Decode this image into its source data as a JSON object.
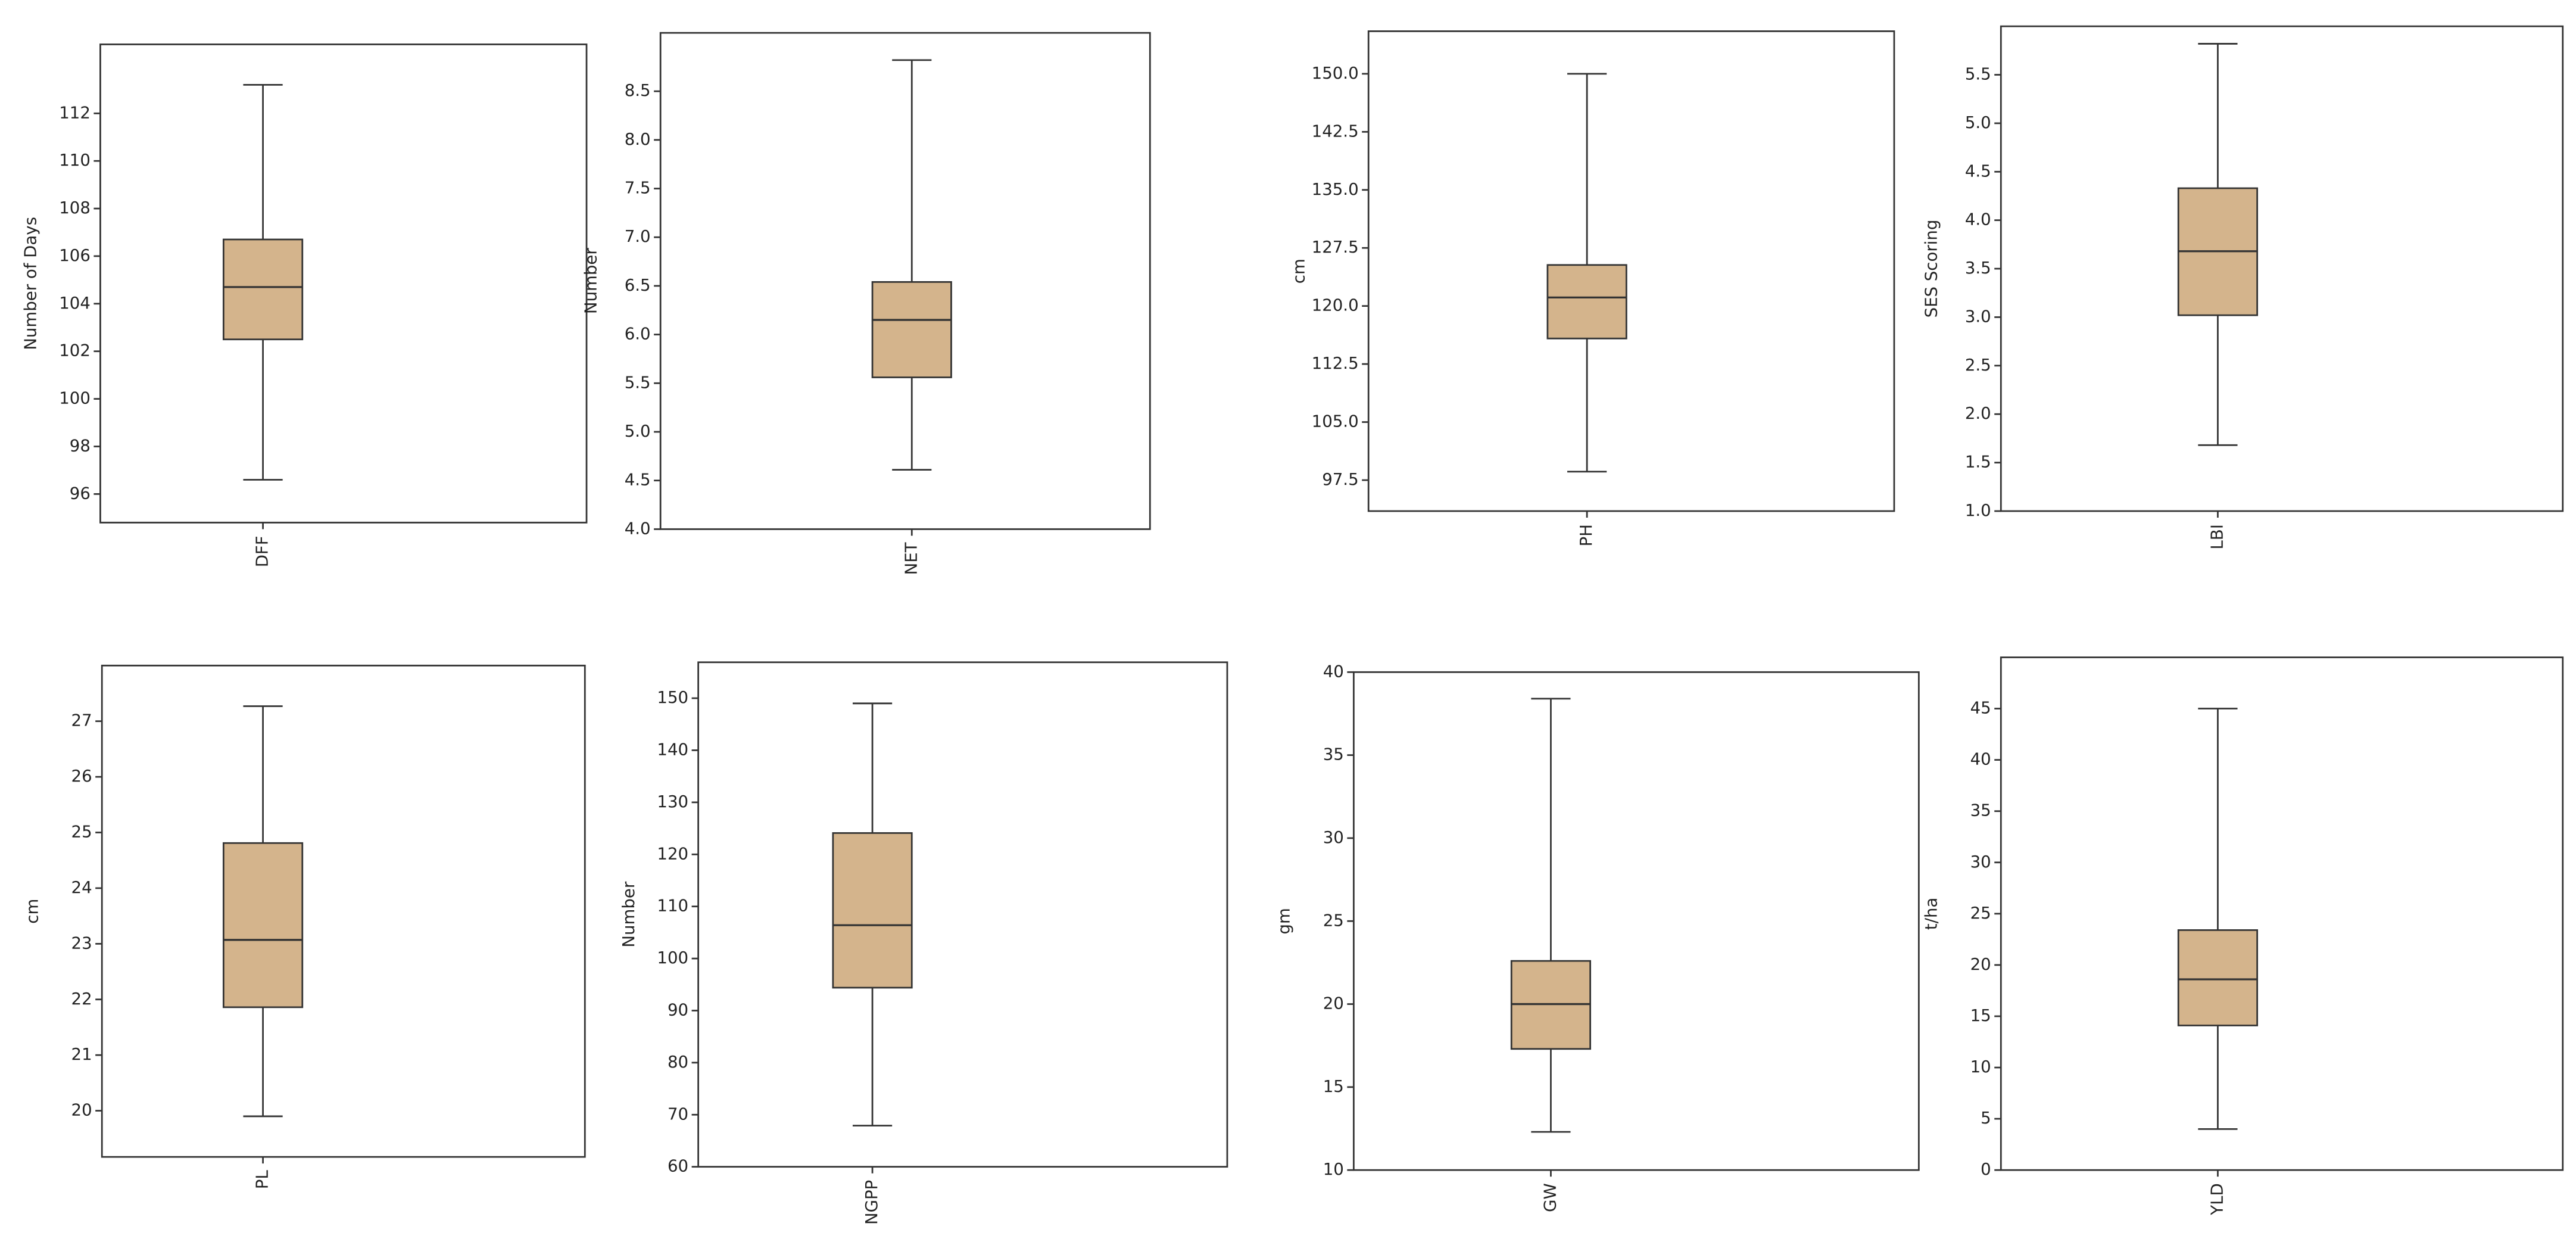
{
  "chart_data": [
    {
      "type": "box",
      "y_label": "Number of Days",
      "categories": [
        "DFF"
      ],
      "whisker_low": [
        96.6
      ],
      "q1": [
        102.5
      ],
      "median": [
        104.7
      ],
      "q3": [
        106.7
      ],
      "whisker_high": [
        113.2
      ],
      "ylim": [
        94.8,
        114.9
      ],
      "yticks": [
        96,
        98,
        100,
        102,
        104,
        106,
        108,
        110,
        112
      ],
      "color": "#d4b48c"
    },
    {
      "type": "box",
      "y_label": "Number",
      "categories": [
        "NET"
      ],
      "whisker_low": [
        4.61
      ],
      "q1": [
        5.56
      ],
      "median": [
        6.15
      ],
      "q3": [
        6.54
      ],
      "whisker_high": [
        8.82
      ],
      "ylim": [
        4.0,
        9.1
      ],
      "yticks": [
        {
          "value": 4.0,
          "label": "4.0"
        },
        4.5,
        {
          "value": 5.0,
          "label": "5.0"
        },
        5.5,
        {
          "value": 6.0,
          "label": "6.0"
        },
        6.5,
        {
          "value": 7.0,
          "label": "7.0"
        },
        7.5,
        {
          "value": 8.0,
          "label": "8.0"
        },
        8.5
      ],
      "color": "#d4b48c"
    },
    {
      "type": "box",
      "y_label": "cm",
      "categories": [
        "PH"
      ],
      "whisker_low": [
        98.6
      ],
      "q1": [
        115.8
      ],
      "median": [
        121.1
      ],
      "q3": [
        125.3
      ],
      "whisker_high": [
        150.0
      ],
      "ylim": [
        93.5,
        155.5
      ],
      "yticks": [
        97.5,
        {
          "value": 105,
          "label": "105.0"
        },
        112.5,
        {
          "value": 120,
          "label": "120.0"
        },
        127.5,
        {
          "value": 135,
          "label": "135.0"
        },
        142.5,
        {
          "value": 150,
          "label": "150.0"
        }
      ],
      "color": "#d4b48c"
    },
    {
      "type": "box",
      "y_label": "SES Scoring",
      "categories": [
        "LBI"
      ],
      "whisker_low": [
        1.68
      ],
      "q1": [
        3.02
      ],
      "median": [
        3.68
      ],
      "q3": [
        4.33
      ],
      "whisker_high": [
        5.82
      ],
      "ylim": [
        1.0,
        6.0
      ],
      "yticks": [
        {
          "value": 1.0,
          "label": "1.0"
        },
        1.5,
        {
          "value": 2.0,
          "label": "2.0"
        },
        2.5,
        {
          "value": 3.0,
          "label": "3.0"
        },
        3.5,
        {
          "value": 4.0,
          "label": "4.0"
        },
        4.5,
        {
          "value": 5.0,
          "label": "5.0"
        },
        5.5
      ],
      "color": "#d4b48c"
    },
    {
      "type": "box",
      "y_label": "cm",
      "categories": [
        "PL"
      ],
      "whisker_low": [
        19.9
      ],
      "q1": [
        21.86
      ],
      "median": [
        23.07
      ],
      "q3": [
        24.81
      ],
      "whisker_high": [
        27.27
      ],
      "ylim": [
        19.17,
        28.0
      ],
      "yticks": [
        20,
        21,
        22,
        23,
        24,
        25,
        26,
        27
      ],
      "color": "#d4b48c"
    },
    {
      "type": "box",
      "y_label": "Number",
      "categories": [
        "NGPP"
      ],
      "whisker_low": [
        67.9
      ],
      "q1": [
        94.4
      ],
      "median": [
        106.4
      ],
      "q3": [
        124.1
      ],
      "whisker_high": [
        149
      ],
      "ylim": [
        60,
        156.9
      ],
      "yticks": [
        60,
        70,
        80,
        90,
        100,
        110,
        120,
        130,
        140,
        150
      ],
      "color": "#d4b48c"
    },
    {
      "type": "box",
      "y_label": "gm",
      "categories": [
        "GW"
      ],
      "whisker_low": [
        12.3
      ],
      "q1": [
        17.3
      ],
      "median": [
        20.0
      ],
      "q3": [
        22.6
      ],
      "whisker_high": [
        38.4
      ],
      "ylim": [
        10,
        40
      ],
      "yticks": [
        10,
        15,
        20,
        25,
        30,
        35,
        40
      ],
      "color": "#d4b48c"
    },
    {
      "type": "box",
      "y_label": "t/ha",
      "categories": [
        "YLD"
      ],
      "whisker_low": [
        4.0
      ],
      "q1": [
        14.1
      ],
      "median": [
        18.6
      ],
      "q3": [
        23.4
      ],
      "whisker_high": [
        45
      ],
      "ylim": [
        0,
        50
      ],
      "yticks": [
        0,
        5,
        10,
        15,
        20,
        25,
        30,
        35,
        40,
        45
      ],
      "color": "#d4b48c"
    }
  ]
}
